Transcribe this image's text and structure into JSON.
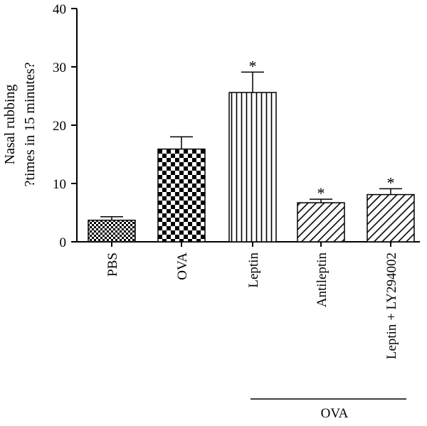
{
  "chart_data": {
    "type": "bar",
    "categories": [
      "PBS",
      "OVA",
      "Leptin",
      "Antileptin",
      "Leptin + LY294002"
    ],
    "values": [
      3.7,
      15.9,
      25.6,
      6.7,
      8.1
    ],
    "errors": [
      0.6,
      2.1,
      3.5,
      0.6,
      1.0
    ],
    "significant": [
      false,
      false,
      true,
      true,
      true
    ],
    "significance_marker": "*",
    "patterns": [
      "fine-checker",
      "large-checker",
      "vertical-lines",
      "diagonal-lines",
      "diagonal-lines"
    ],
    "ylabel_lines": [
      "Nasal rubbing",
      "?times in 15 minutes?"
    ],
    "ylim": [
      0,
      40
    ],
    "yticks": [
      "0",
      "10",
      "20",
      "30",
      "40"
    ],
    "group": {
      "label": "OVA"
    },
    "grid": false,
    "legend": "none"
  }
}
